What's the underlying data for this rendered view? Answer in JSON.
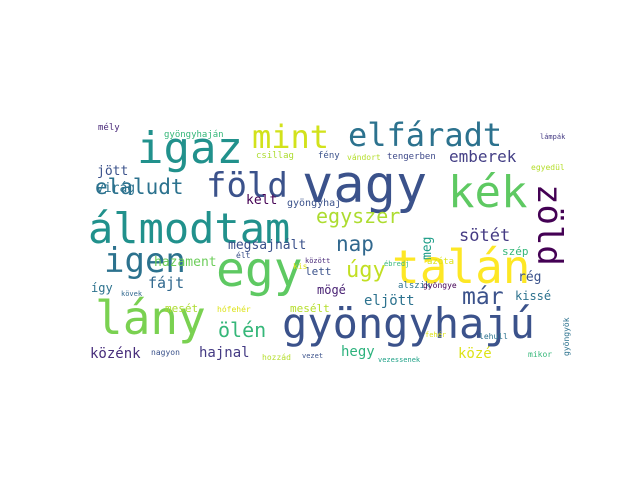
{
  "words": [
    {
      "text": "vagy",
      "color": "#3b528b"
    },
    {
      "text": "egy",
      "color": "#5ec962"
    },
    {
      "text": "álmodtam",
      "color": "#21918c"
    },
    {
      "text": "lány",
      "color": "#7ad151"
    },
    {
      "text": "gyöngyhajú",
      "color": "#3b528b"
    },
    {
      "text": "talán",
      "color": "#fde725"
    },
    {
      "text": "kék",
      "color": "#5ec962"
    },
    {
      "text": "igaz",
      "color": "#21918c"
    },
    {
      "text": "igen",
      "color": "#2c728e"
    },
    {
      "text": "föld",
      "color": "#3b528b"
    },
    {
      "text": "zöld",
      "color": "#440154"
    },
    {
      "text": "elfáradt",
      "color": "#2c728e"
    },
    {
      "text": "mint",
      "color": "#d2e21b"
    },
    {
      "text": "elaludt",
      "color": "#2c728e"
    },
    {
      "text": "egyszer",
      "color": "#addc30"
    },
    {
      "text": "nap",
      "color": "#31688e"
    },
    {
      "text": "emberek",
      "color": "#433e85"
    },
    {
      "text": "sötét",
      "color": "#443a83"
    },
    {
      "text": "úgy",
      "color": "#c2df23"
    },
    {
      "text": "már",
      "color": "#3b528b"
    },
    {
      "text": "ölén",
      "color": "#35b779"
    },
    {
      "text": "hazament",
      "color": "#6ccd5a"
    },
    {
      "text": "fájt",
      "color": "#31688e"
    },
    {
      "text": "megsajnált",
      "color": "#3b528b"
    },
    {
      "text": "hajnal",
      "color": "#443a83"
    },
    {
      "text": "közénk",
      "color": "#472d7b"
    },
    {
      "text": "eljött",
      "color": "#2c728e"
    },
    {
      "text": "hegy",
      "color": "#2db27d"
    },
    {
      "text": "közé",
      "color": "#dde318"
    },
    {
      "text": "jött",
      "color": "#3b528b"
    },
    {
      "text": "virág",
      "color": "#2c728e"
    },
    {
      "text": "kelt",
      "color": "#440154"
    },
    {
      "text": "lett",
      "color": "#3b528b"
    },
    {
      "text": "mögé",
      "color": "#482173"
    },
    {
      "text": "így",
      "color": "#2c728e"
    },
    {
      "text": "mesét",
      "color": "#addc30"
    },
    {
      "text": "mesélt",
      "color": "#b5de2b"
    },
    {
      "text": "rég",
      "color": "#3b528b"
    },
    {
      "text": "kissé",
      "color": "#2c728e"
    },
    {
      "text": "szép",
      "color": "#35b779"
    },
    {
      "text": "meg",
      "color": "#1f9e89"
    },
    {
      "text": "gyöngyhaj",
      "color": "#3b528b"
    },
    {
      "text": "mély",
      "color": "#482878"
    },
    {
      "text": "gyöngyhaján",
      "color": "#35b779"
    },
    {
      "text": "csillag",
      "color": "#addc30"
    },
    {
      "text": "fény",
      "color": "#3b528b"
    },
    {
      "text": "vándort",
      "color": "#b5de2b"
    },
    {
      "text": "tengerben",
      "color": "#3e4989"
    },
    {
      "text": "lámpák",
      "color": "#443a83"
    },
    {
      "text": "egyedül",
      "color": "#b5de2b"
    },
    {
      "text": "ébredj",
      "color": "#35b779"
    },
    {
      "text": "azóta",
      "color": "#dde318"
    },
    {
      "text": "élt",
      "color": "#3b528b"
    },
    {
      "text": "között",
      "color": "#482878"
    },
    {
      "text": "alszik",
      "color": "#2c728e"
    },
    {
      "text": "gyöngye",
      "color": "#440154"
    },
    {
      "text": "hófehér",
      "color": "#dde318"
    },
    {
      "text": "kövek",
      "color": "#31688e"
    },
    {
      "text": "nagyon",
      "color": "#3b528b"
    },
    {
      "text": "hozzád",
      "color": "#b5de2b"
    },
    {
      "text": "vezet",
      "color": "#3b528b"
    },
    {
      "text": "vezessenek",
      "color": "#1fa187"
    },
    {
      "text": "lehull",
      "color": "#2c728e"
    },
    {
      "text": "fehér",
      "color": "#dde318"
    },
    {
      "text": "mikor",
      "color": "#35b779"
    },
    {
      "text": "gyöngyök",
      "color": "#2c728e"
    },
    {
      "text": "kis",
      "color": "#dde318"
    }
  ]
}
